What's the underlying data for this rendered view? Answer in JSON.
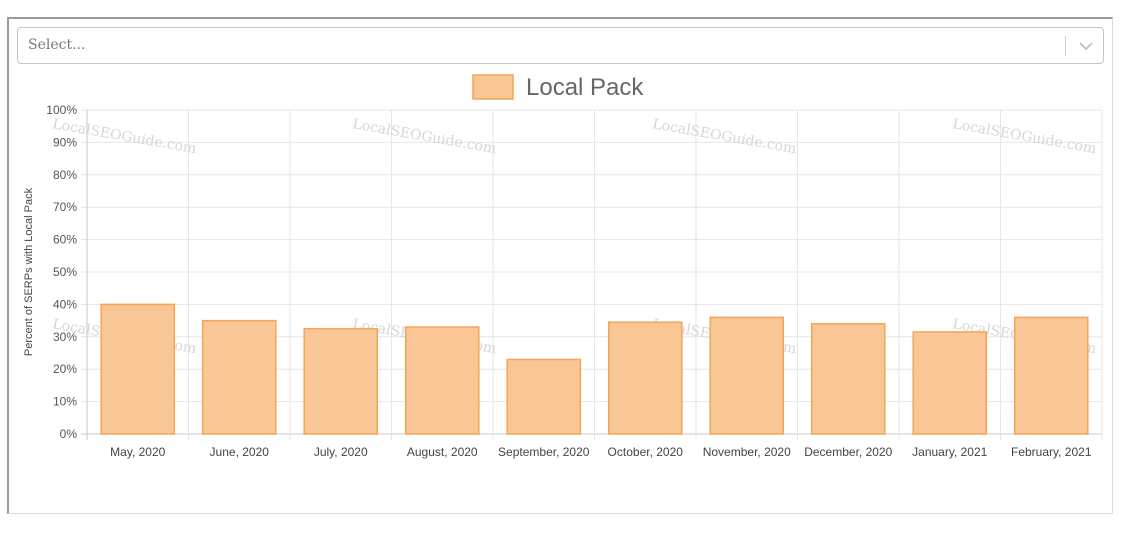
{
  "select": {
    "placeholder": "Select..."
  },
  "watermark": "LocalSEOGuide.com",
  "chart_data": {
    "type": "bar",
    "title": "",
    "xlabel": "",
    "ylabel": "Percent of SERPs with Local Pack",
    "ylim": [
      0,
      100
    ],
    "y_ticks": [
      "0%",
      "10%",
      "20%",
      "30%",
      "40%",
      "50%",
      "60%",
      "70%",
      "80%",
      "90%",
      "100%"
    ],
    "grid": true,
    "legend": {
      "position": "top",
      "entries": [
        "Local Pack"
      ]
    },
    "categories": [
      "May, 2020",
      "June, 2020",
      "July, 2020",
      "August, 2020",
      "September, 2020",
      "October, 2020",
      "November, 2020",
      "December, 2020",
      "January, 2021",
      "February, 2021"
    ],
    "series": [
      {
        "name": "Local Pack",
        "values": [
          40,
          35,
          32.5,
          33,
          23,
          34.5,
          36,
          34,
          31.5,
          36
        ],
        "fill": "#f8c795",
        "stroke": "#f3a456"
      }
    ]
  }
}
